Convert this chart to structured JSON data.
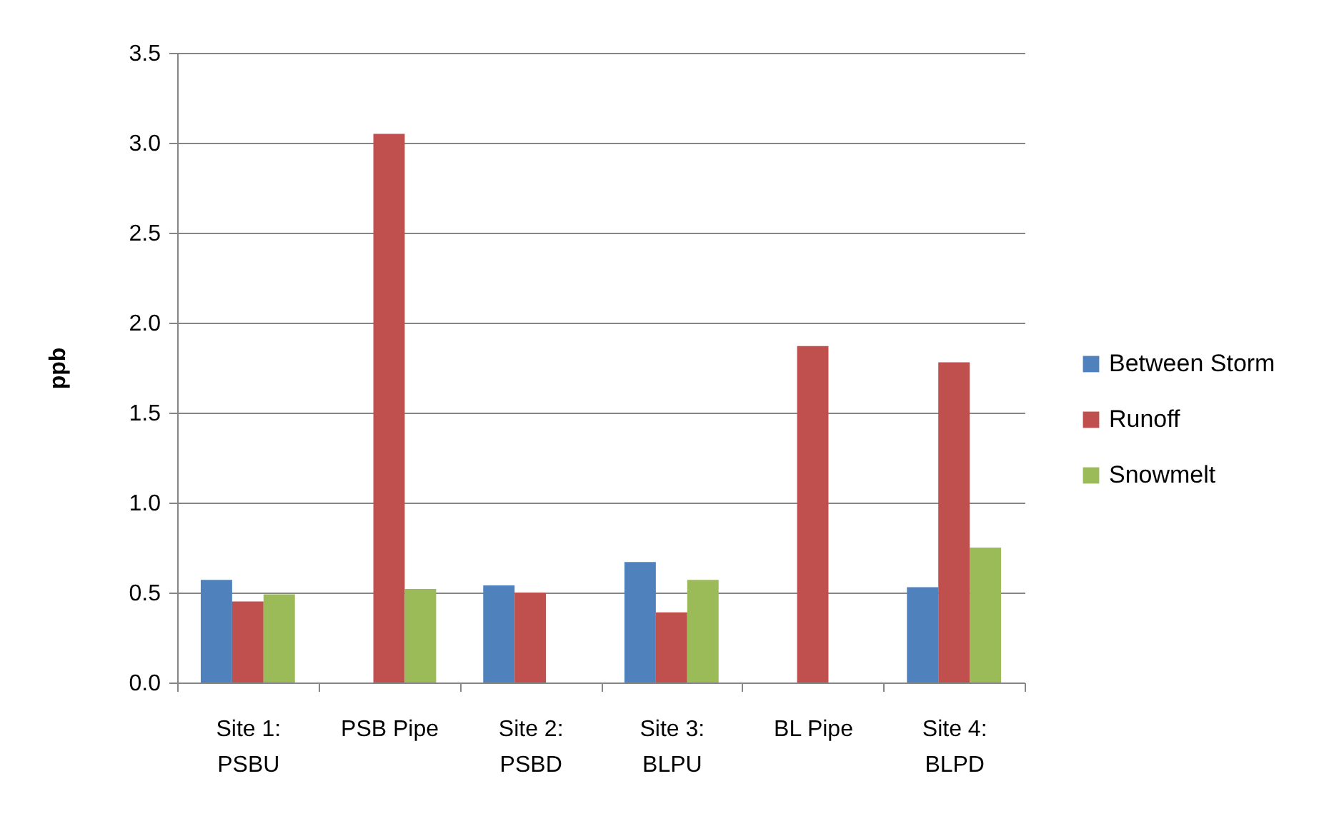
{
  "chart_data": {
    "type": "bar",
    "ylabel": "ppb",
    "categories": [
      "Site 1:\nPSBU",
      "PSB Pipe",
      "Site 2:\nPSBD",
      "Site 3:\nBLPU",
      "BL Pipe",
      "Site 4:\nBLPD"
    ],
    "series": [
      {
        "name": "Between Storm",
        "color": "#4f81bd",
        "values": [
          0.57,
          null,
          0.54,
          0.67,
          null,
          0.53
        ]
      },
      {
        "name": "Runoff",
        "color": "#c0504d",
        "values": [
          0.45,
          3.05,
          0.5,
          0.39,
          1.87,
          1.78
        ]
      },
      {
        "name": "Snowmelt",
        "color": "#9bbb59",
        "values": [
          0.49,
          0.52,
          null,
          0.57,
          null,
          0.75
        ]
      }
    ],
    "ylim": [
      0,
      3.5
    ],
    "yticks": [
      {
        "value": 0,
        "label": "0.0"
      },
      0.5,
      {
        "value": 1,
        "label": "1.0"
      },
      1.5,
      {
        "value": 2,
        "label": "2.0"
      },
      2.5,
      {
        "value": 3,
        "label": "3.0"
      },
      3.5
    ],
    "grid": "y",
    "legend": "right"
  }
}
